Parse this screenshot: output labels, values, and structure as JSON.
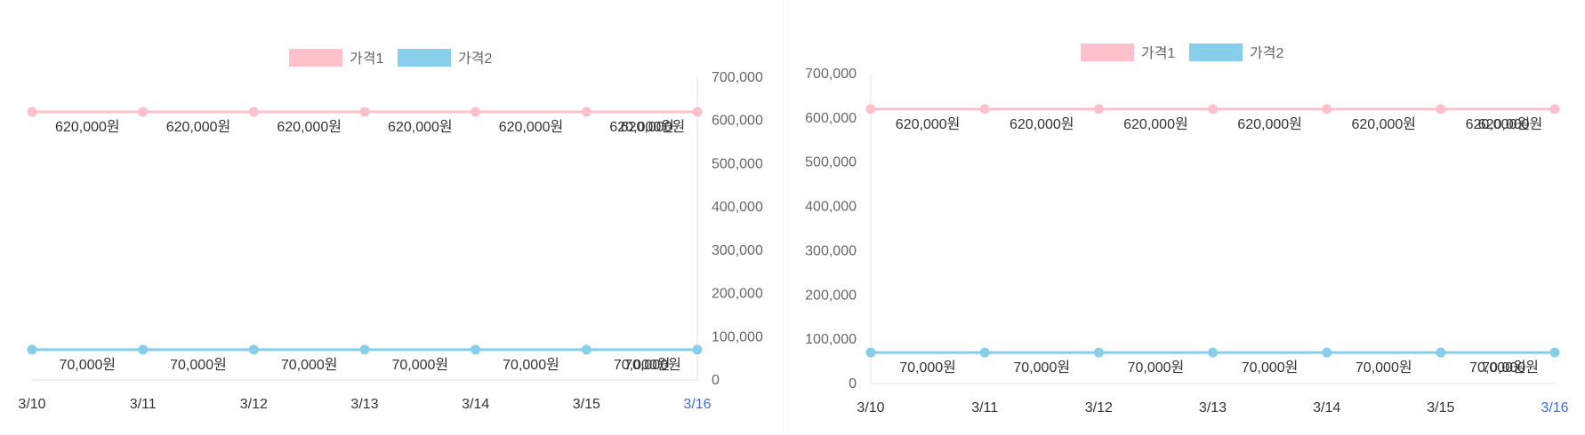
{
  "chart_data": [
    {
      "type": "line",
      "categories": [
        "3/10",
        "3/11",
        "3/12",
        "3/13",
        "3/14",
        "3/15",
        "3/16"
      ],
      "highlight_category": "3/16",
      "series": [
        {
          "name": "가격1",
          "values": [
            620000,
            620000,
            620000,
            620000,
            620000,
            620000,
            620000
          ],
          "color": "#ffc0cb"
        },
        {
          "name": "가격2",
          "values": [
            70000,
            70000,
            70000,
            70000,
            70000,
            70000,
            70000
          ],
          "color": "#87ceeb"
        }
      ],
      "data_label_suffix": "원",
      "y_ticks": [
        "0",
        "100,000",
        "200,000",
        "300,000",
        "400,000",
        "500,000",
        "600,000",
        "700,000"
      ],
      "ylim": [
        0,
        700000
      ],
      "y_axis_position": "right",
      "legend_position": "top-center",
      "grid": false
    },
    {
      "type": "line",
      "categories": [
        "3/10",
        "3/11",
        "3/12",
        "3/13",
        "3/14",
        "3/15",
        "3/16"
      ],
      "highlight_category": "3/16",
      "series": [
        {
          "name": "가격1",
          "values": [
            620000,
            620000,
            620000,
            620000,
            620000,
            620000,
            620000
          ],
          "color": "#ffc0cb"
        },
        {
          "name": "가격2",
          "values": [
            70000,
            70000,
            70000,
            70000,
            70000,
            70000,
            70000
          ],
          "color": "#87ceeb"
        }
      ],
      "data_label_suffix": "원",
      "y_ticks": [
        "0",
        "100,000",
        "200,000",
        "300,000",
        "400,000",
        "500,000",
        "600,000",
        "700,000"
      ],
      "ylim": [
        0,
        700000
      ],
      "y_axis_position": "left",
      "legend_position": "top-center",
      "grid": false
    }
  ]
}
